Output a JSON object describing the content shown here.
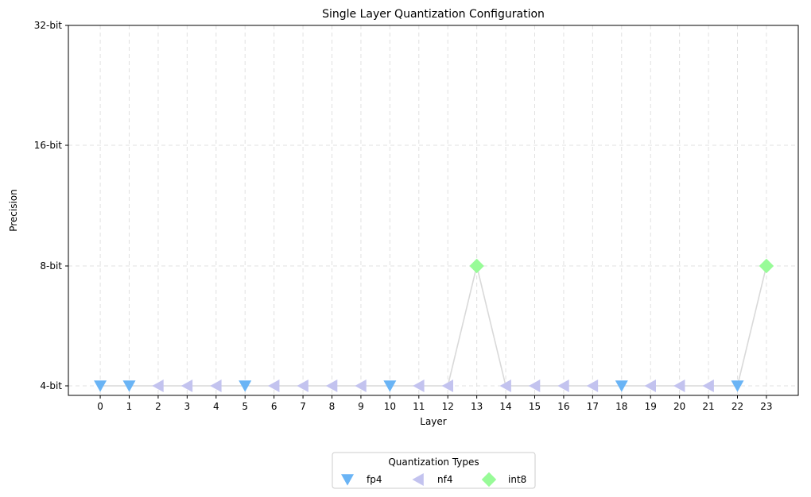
{
  "chart_data": {
    "type": "line",
    "title": "Single Layer Quantization Configuration",
    "xlabel": "Layer",
    "ylabel": "Precision",
    "x": [
      0,
      1,
      2,
      3,
      4,
      5,
      6,
      7,
      8,
      9,
      10,
      11,
      12,
      13,
      14,
      15,
      16,
      17,
      18,
      19,
      20,
      21,
      22,
      23
    ],
    "types": [
      "fp4",
      "fp4",
      "nf4",
      "nf4",
      "nf4",
      "fp4",
      "nf4",
      "nf4",
      "nf4",
      "nf4",
      "fp4",
      "nf4",
      "nf4",
      "int8",
      "nf4",
      "nf4",
      "nf4",
      "nf4",
      "fp4",
      "nf4",
      "nf4",
      "nf4",
      "fp4",
      "int8"
    ],
    "y_bits": [
      4,
      4,
      4,
      4,
      4,
      4,
      4,
      4,
      4,
      4,
      4,
      4,
      4,
      8,
      4,
      4,
      4,
      4,
      4,
      4,
      4,
      4,
      4,
      8
    ],
    "y_ticks": [
      {
        "value": 4,
        "label": "4-bit"
      },
      {
        "value": 8,
        "label": "8-bit"
      },
      {
        "value": 16,
        "label": "16-bit"
      },
      {
        "value": 32,
        "label": "32-bit"
      }
    ],
    "x_ticks": [
      "0",
      "1",
      "2",
      "3",
      "4",
      "5",
      "6",
      "7",
      "8",
      "9",
      "10",
      "11",
      "12",
      "13",
      "14",
      "15",
      "16",
      "17",
      "18",
      "19",
      "20",
      "21",
      "22",
      "23"
    ],
    "grid": true,
    "line_color": "#d9d9d9",
    "legend": {
      "title": "Quantization Types",
      "placement": "bottom-center",
      "entries": [
        {
          "name": "fp4",
          "color": "#6ab4f5",
          "marker": "triangle-down"
        },
        {
          "name": "nf4",
          "color": "#c3c3ef",
          "marker": "triangle-left"
        },
        {
          "name": "int8",
          "color": "#98fb98",
          "marker": "diamond"
        }
      ]
    }
  }
}
